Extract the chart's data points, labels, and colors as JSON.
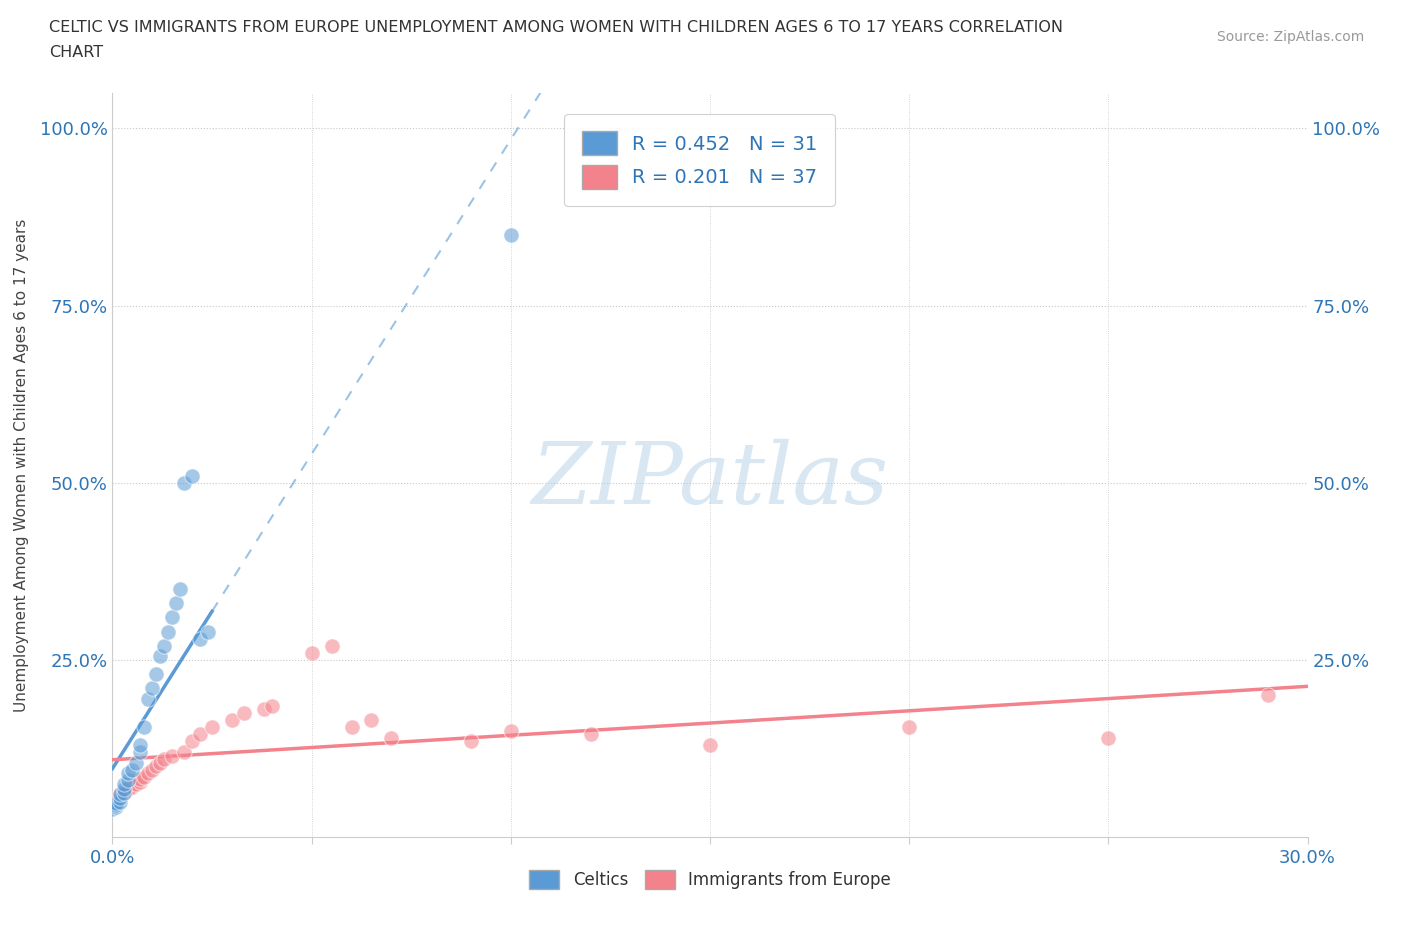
{
  "title_line1": "CELTIC VS IMMIGRANTS FROM EUROPE UNEMPLOYMENT AMONG WOMEN WITH CHILDREN AGES 6 TO 17 YEARS CORRELATION",
  "title_line2": "CHART",
  "source": "Source: ZipAtlas.com",
  "ylabel": "Unemployment Among Women with Children Ages 6 to 17 years",
  "xlim": [
    0.0,
    0.3
  ],
  "ylim": [
    0.0,
    1.05
  ],
  "xtick_positions": [
    0.0,
    0.05,
    0.1,
    0.15,
    0.2,
    0.25,
    0.3
  ],
  "xtick_labels": [
    "0.0%",
    "",
    "",
    "",
    "",
    "",
    "30.0%"
  ],
  "ytick_positions": [
    0.25,
    0.5,
    0.75,
    1.0
  ],
  "ytick_labels": [
    "25.0%",
    "50.0%",
    "75.0%",
    "100.0%"
  ],
  "celtics_color": "#5b9bd5",
  "immigrants_color": "#f4828c",
  "celtics_R": 0.452,
  "celtics_N": 31,
  "immigrants_R": 0.201,
  "immigrants_N": 37,
  "celtics_x": [
    0.0,
    0.001,
    0.001,
    0.001,
    0.002,
    0.002,
    0.002,
    0.003,
    0.003,
    0.003,
    0.004,
    0.004,
    0.005,
    0.006,
    0.007,
    0.007,
    0.008,
    0.009,
    0.01,
    0.011,
    0.012,
    0.013,
    0.014,
    0.015,
    0.016,
    0.017,
    0.018,
    0.02,
    0.022,
    0.024,
    0.1
  ],
  "celtics_y": [
    0.04,
    0.042,
    0.045,
    0.048,
    0.05,
    0.055,
    0.06,
    0.062,
    0.068,
    0.075,
    0.08,
    0.09,
    0.095,
    0.105,
    0.12,
    0.13,
    0.155,
    0.195,
    0.21,
    0.23,
    0.255,
    0.27,
    0.29,
    0.31,
    0.33,
    0.35,
    0.5,
    0.51,
    0.28,
    0.29,
    0.85
  ],
  "immigrants_x": [
    0.0,
    0.001,
    0.002,
    0.003,
    0.003,
    0.004,
    0.005,
    0.006,
    0.007,
    0.007,
    0.008,
    0.009,
    0.01,
    0.011,
    0.012,
    0.013,
    0.015,
    0.018,
    0.02,
    0.022,
    0.025,
    0.03,
    0.033,
    0.038,
    0.04,
    0.05,
    0.055,
    0.06,
    0.065,
    0.07,
    0.09,
    0.1,
    0.12,
    0.15,
    0.2,
    0.25,
    0.29
  ],
  "immigrants_y": [
    0.05,
    0.055,
    0.06,
    0.062,
    0.065,
    0.068,
    0.07,
    0.075,
    0.078,
    0.082,
    0.085,
    0.09,
    0.095,
    0.1,
    0.105,
    0.11,
    0.115,
    0.12,
    0.135,
    0.145,
    0.155,
    0.165,
    0.175,
    0.18,
    0.185,
    0.26,
    0.27,
    0.155,
    0.165,
    0.14,
    0.135,
    0.15,
    0.145,
    0.13,
    0.155,
    0.14,
    0.2
  ],
  "background_color": "#ffffff",
  "grid_color": "#c8c8c8",
  "watermark_text": "ZIPatlas",
  "watermark_color": "#b8d4e8",
  "legend_text_color": "#2e75b6",
  "axis_tick_color": "#2e75b6",
  "title_color": "#333333",
  "source_color": "#999999",
  "label_color": "#444444"
}
